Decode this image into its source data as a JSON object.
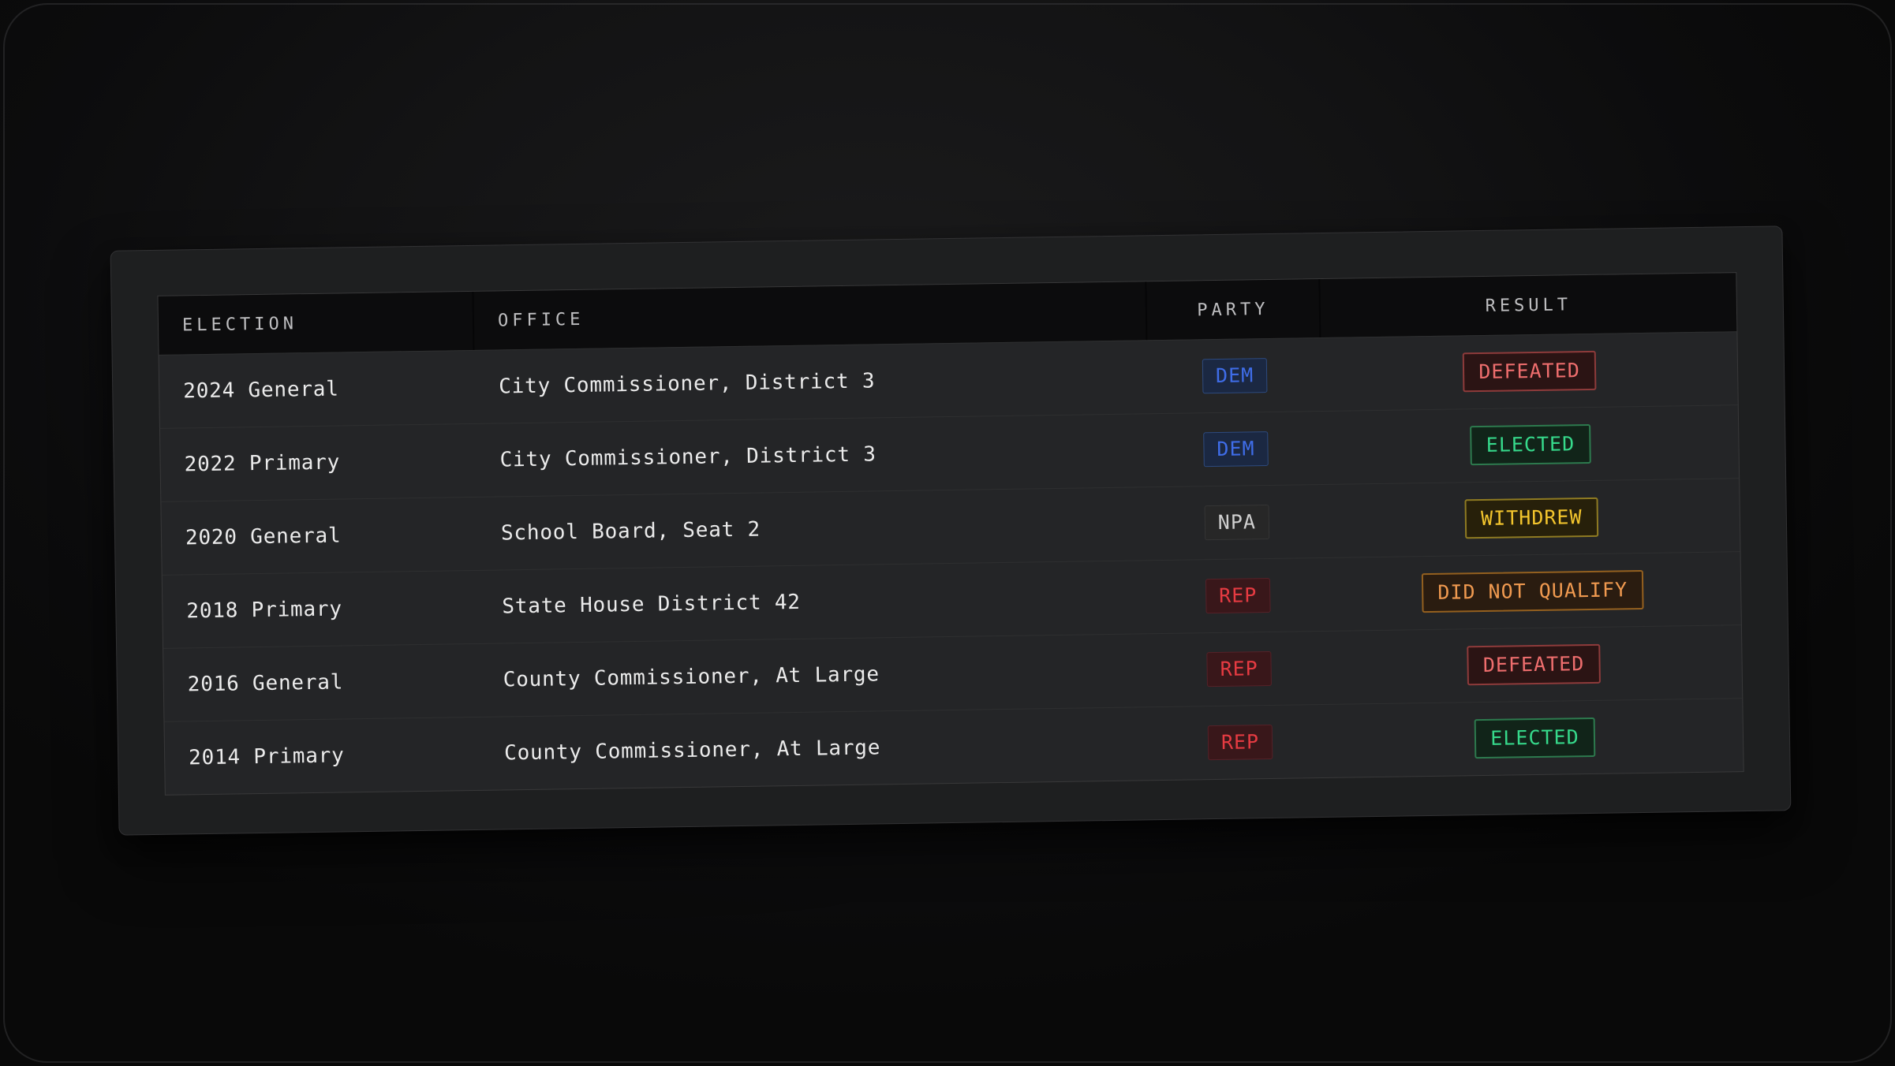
{
  "table": {
    "columns": [
      {
        "id": "election",
        "label": "ELECTION"
      },
      {
        "id": "office",
        "label": "OFFICE"
      },
      {
        "id": "party",
        "label": "PARTY"
      },
      {
        "id": "result",
        "label": "RESULT"
      }
    ],
    "rows": [
      {
        "election": "2024 General",
        "office": "City Commissioner, District 3",
        "party": "DEM",
        "result": "DEFEATED"
      },
      {
        "election": "2022 Primary",
        "office": "City Commissioner, District 3",
        "party": "DEM",
        "result": "ELECTED"
      },
      {
        "election": "2020 General",
        "office": "School Board, Seat 2",
        "party": "NPA",
        "result": "WITHDREW"
      },
      {
        "election": "2018 Primary",
        "office": "State House District 42",
        "party": "REP",
        "result": "DID NOT QUALIFY"
      },
      {
        "election": "2016 General",
        "office": "County Commissioner, At Large",
        "party": "REP",
        "result": "DEFEATED"
      },
      {
        "election": "2014 Primary",
        "office": "County Commissioner, At Large",
        "party": "REP",
        "result": "ELECTED"
      }
    ]
  },
  "badge_styles": {
    "DEM": {
      "text": "#3f6de8",
      "bg": "#1b2842",
      "border": "#2d4a7e"
    },
    "REP": {
      "text": "#e63b42",
      "bg": "#39171a",
      "border": "#552128"
    },
    "NPA": {
      "text": "#cfcfcf",
      "bg": "#272727",
      "border": "#353535"
    },
    "DEFEATED": {
      "text": "#ef6e6e",
      "bg": "#2b1414",
      "border": "#8e3b3b"
    },
    "ELECTED": {
      "text": "#36d98b",
      "bg": "#112419",
      "border": "#2d7a4e"
    },
    "WITHDREW": {
      "text": "#f3c52d",
      "bg": "#27200a",
      "border": "#8f7b22"
    },
    "DID NOT QUALIFY": {
      "text": "#f09a50",
      "bg": "#2a1c10",
      "border": "#94601f"
    }
  },
  "page": {
    "background": "#131314",
    "frame_border": "#3a3a3c",
    "card_background": "#1e1f20",
    "header_background": "#0c0c0d",
    "header_text": "#bfbfc1",
    "row_text": "#ebebeb"
  }
}
